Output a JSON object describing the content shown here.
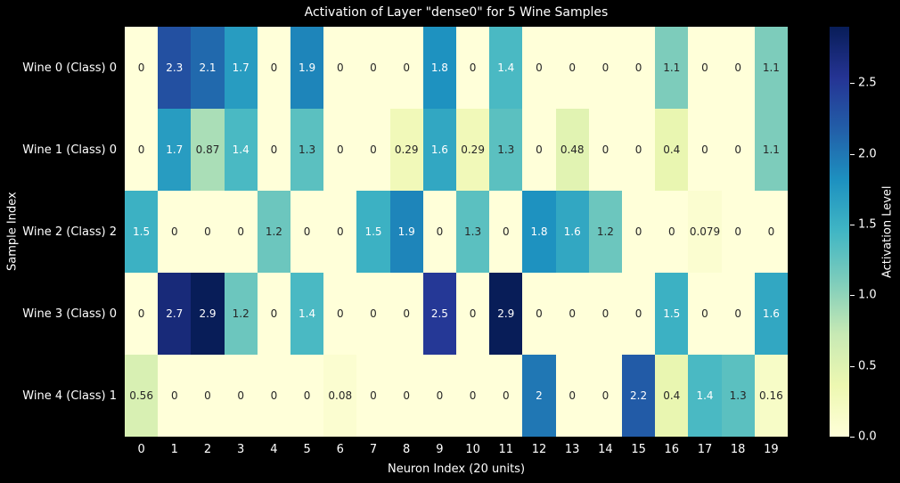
{
  "colors": {
    "figure_background": "#000000",
    "text": "#ffffff",
    "annotation_dark": "#262626",
    "annotation_light": "#ffffff"
  },
  "chart_data": {
    "type": "heatmap",
    "title": "Activation of Layer \"dense0\" for 5 Wine Samples",
    "xlabel": "Neuron Index (20 units)",
    "ylabel": "Sample Index",
    "colorbar_label": "Activation Level",
    "row_labels": [
      "Wine 0 (Class) 0",
      "Wine 1 (Class) 0",
      "Wine 2 (Class) 2",
      "Wine 3 (Class) 0",
      "Wine 4 (Class) 1"
    ],
    "col_labels": [
      "0",
      "1",
      "2",
      "3",
      "4",
      "5",
      "6",
      "7",
      "8",
      "9",
      "10",
      "11",
      "12",
      "13",
      "14",
      "15",
      "16",
      "17",
      "18",
      "19"
    ],
    "values": [
      [
        "0",
        "2.3",
        "2.1",
        "1.7",
        "0",
        "1.9",
        "0",
        "0",
        "0",
        "1.8",
        "0",
        "1.4",
        "0",
        "0",
        "0",
        "0",
        "1.1",
        "0",
        "0",
        "1.1"
      ],
      [
        "0",
        "1.7",
        "0.87",
        "1.4",
        "0",
        "1.3",
        "0",
        "0",
        "0.29",
        "1.6",
        "0.29",
        "1.3",
        "0",
        "0.48",
        "0",
        "0",
        "0.4",
        "0",
        "0",
        "1.1"
      ],
      [
        "1.5",
        "0",
        "0",
        "0",
        "1.2",
        "0",
        "0",
        "1.5",
        "1.9",
        "0",
        "1.3",
        "0",
        "1.8",
        "1.6",
        "1.2",
        "0",
        "0",
        "0.079",
        "0",
        "0"
      ],
      [
        "0",
        "2.7",
        "2.9",
        "1.2",
        "0",
        "1.4",
        "0",
        "0",
        "0",
        "2.5",
        "0",
        "2.9",
        "0",
        "0",
        "0",
        "0",
        "1.5",
        "0",
        "0",
        "1.6"
      ],
      [
        "0.56",
        "0",
        "0",
        "0",
        "0",
        "0",
        "0.08",
        "0",
        "0",
        "0",
        "0",
        "0",
        "2",
        "0",
        "0",
        "2.2",
        "0.4",
        "1.4",
        "1.3",
        "0.16"
      ]
    ],
    "vmin": 0,
    "vmax": 2.9,
    "colormap": {
      "name": "YlGnBu",
      "stops": [
        "#ffffd9",
        "#edf8b1",
        "#c7e9b4",
        "#7fcdbb",
        "#41b6c4",
        "#1d91c0",
        "#225ea8",
        "#253494",
        "#081d58"
      ]
    },
    "colorbar_ticks": [
      {
        "label": "0.0",
        "value": 0.0
      },
      {
        "label": "0.5",
        "value": 0.5
      },
      {
        "label": "1.0",
        "value": 1.0
      },
      {
        "label": "1.5",
        "value": 1.5
      },
      {
        "label": "2.0",
        "value": 2.0
      },
      {
        "label": "2.5",
        "value": 2.5
      }
    ],
    "grid": false,
    "legend": false
  }
}
